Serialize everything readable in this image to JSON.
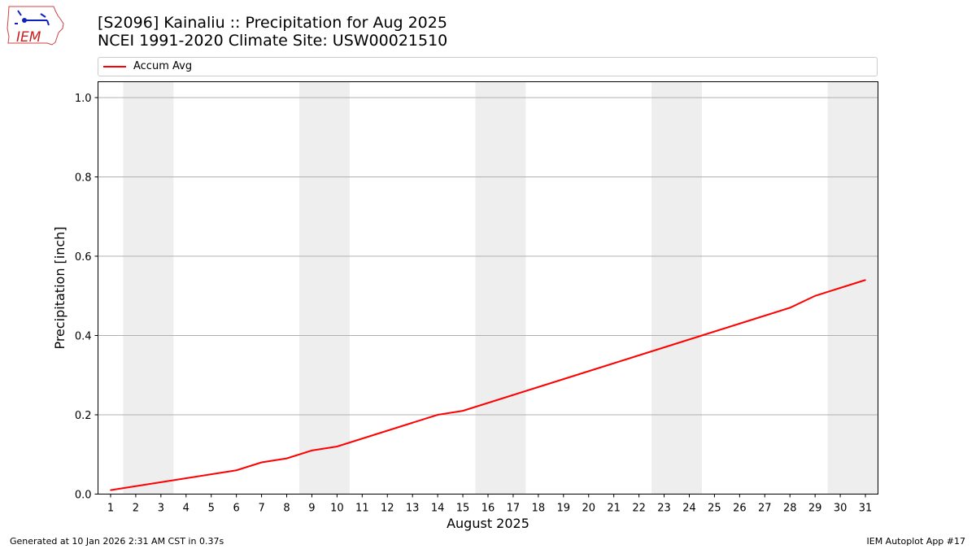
{
  "header": {
    "title_line1": "[S2096] Kainaliu :: Precipitation for Aug 2025",
    "title_line2": "NCEI 1991-2020 Climate Site: USW00021510"
  },
  "logo": {
    "text": "IEM"
  },
  "footer": {
    "generated": "Generated at 10 Jan 2026 2:31 AM CST in 0.37s",
    "app": "IEM Autoplot App #17"
  },
  "colors": {
    "line": "#ff0000",
    "weekend_shade": "#eeeeee",
    "grid": "#b0b0b0"
  },
  "chart_data": {
    "type": "line",
    "xlabel": "August 2025",
    "ylabel": "Precipitation [inch]",
    "ylim": [
      0.0,
      1.04
    ],
    "xlim": [
      0.5,
      31.5
    ],
    "grid": "horizontal",
    "legend_position": "top",
    "x_ticks": [
      1,
      2,
      3,
      4,
      5,
      6,
      7,
      8,
      9,
      10,
      11,
      12,
      13,
      14,
      15,
      16,
      17,
      18,
      19,
      20,
      21,
      22,
      23,
      24,
      25,
      26,
      27,
      28,
      29,
      30,
      31
    ],
    "y_ticks": [
      0.0,
      0.2,
      0.4,
      0.6,
      0.8,
      1.0
    ],
    "y_tick_labels": [
      "0.0",
      "0.2",
      "0.4",
      "0.6",
      "0.8",
      "1.0"
    ],
    "weekend_days": [
      [
        2,
        3
      ],
      [
        9,
        10
      ],
      [
        16,
        17
      ],
      [
        23,
        24
      ],
      [
        30,
        31
      ]
    ],
    "series": [
      {
        "name": "Accum Avg",
        "color": "#ff0000",
        "x": [
          1,
          2,
          3,
          4,
          5,
          6,
          7,
          8,
          9,
          10,
          11,
          12,
          13,
          14,
          15,
          16,
          17,
          18,
          19,
          20,
          21,
          22,
          23,
          24,
          25,
          26,
          27,
          28,
          29,
          30,
          31
        ],
        "values": [
          0.01,
          0.02,
          0.03,
          0.04,
          0.05,
          0.06,
          0.08,
          0.09,
          0.11,
          0.12,
          0.14,
          0.16,
          0.18,
          0.2,
          0.21,
          0.23,
          0.25,
          0.27,
          0.29,
          0.31,
          0.33,
          0.35,
          0.37,
          0.39,
          0.41,
          0.43,
          0.45,
          0.47,
          0.5,
          0.52,
          0.54
        ]
      }
    ]
  }
}
